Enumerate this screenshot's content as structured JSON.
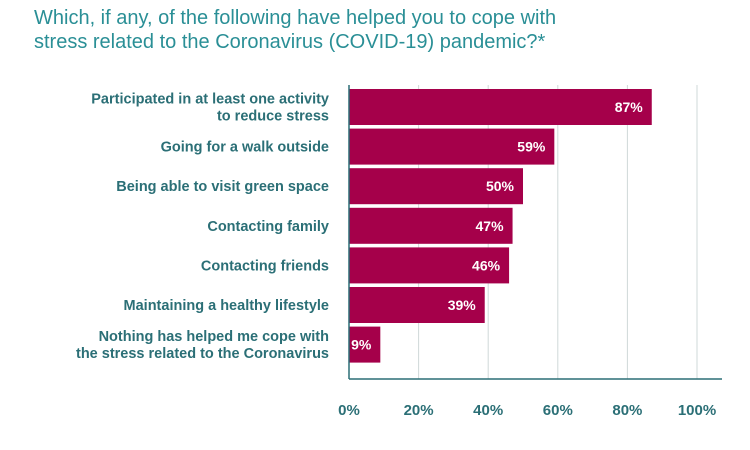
{
  "chart_data": {
    "type": "bar",
    "orientation": "horizontal",
    "title_lines": [
      "Which, if any, of the following have helped you to cope with",
      "stress related to the Coronavirus (COVID-19) pandemic?*"
    ],
    "categories": [
      [
        "Participated in at least one activity",
        "to reduce stress"
      ],
      [
        "Going for a walk outside"
      ],
      [
        "Being able to visit green space"
      ],
      [
        "Contacting family"
      ],
      [
        "Contacting friends"
      ],
      [
        "Maintaining a healthy lifestyle"
      ],
      [
        "Nothing has helped me cope with",
        "the stress related to the Coronavirus"
      ]
    ],
    "values": [
      87,
      59,
      50,
      47,
      46,
      39,
      9
    ],
    "value_labels": [
      "87%",
      "59%",
      "50%",
      "47%",
      "46%",
      "39%",
      "9%"
    ],
    "xlim": [
      0,
      100
    ],
    "x_ticks": [
      0,
      20,
      40,
      60,
      80,
      100
    ],
    "x_tick_labels": [
      "0%",
      "20%",
      "40%",
      "60%",
      "80%",
      "100%"
    ],
    "grid": true,
    "legend": "none",
    "colors": {
      "bar": "#a5004a",
      "grid": "#cfd8d8",
      "axis": "#2b6f76",
      "text": "#2b6f76",
      "title": "#2a8f96"
    }
  }
}
